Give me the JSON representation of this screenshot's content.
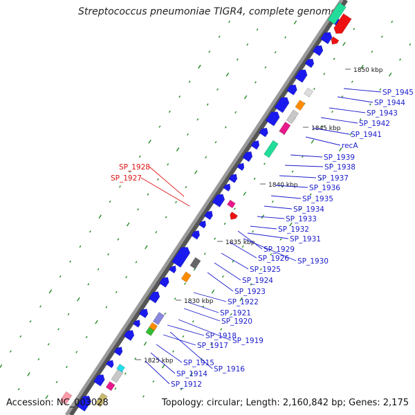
{
  "title": "Streptococcus pneumoniae TIGR4, complete genome",
  "accession": "Accession: NC_003028",
  "topology": "Topology: circular; Length: 2,160,842 bp; Genes: 2,175",
  "kbp_markers": [
    "1850 kbp",
    "1845 kbp",
    "1840 kbp",
    "1835 kbp",
    "1830 kbp",
    "1825 kbp"
  ],
  "genes_right": [
    "SP_1945",
    "SP_1944",
    "SP_1943",
    "SP_1942",
    "SP_1941",
    "recA",
    "SP_1939",
    "SP_1938",
    "SP_1937",
    "SP_1936",
    "SP_1935",
    "SP_1934",
    "SP_1933",
    "SP_1932",
    "SP_1931",
    "SP_1930",
    "SP_1929",
    "SP_1926",
    "SP_1925",
    "SP_1924",
    "SP_1923",
    "SP_1922",
    "SP_1921",
    "SP_1920",
    "SP_1919",
    "SP_1918",
    "SP_1917",
    "SP_1916",
    "SP_1915",
    "SP_1914",
    "SP_1912"
  ],
  "genes_left": [
    "SP_1928",
    "SP_1927"
  ],
  "colors": {
    "backbone": "#9a9a9a",
    "forward_gene": "#1a1aee",
    "reverse_gene": "#ee1111",
    "label_blue": "#1a1acc",
    "label_red": "#dd1111",
    "tick": "#228822",
    "magenta": "#e8198c",
    "orange": "#ff8c00",
    "gray": "#c8c8c8",
    "dark_gray": "#666666",
    "teal": "#22dd99",
    "lavender": "#8888dd",
    "olive": "#c8b870",
    "cyan": "#22ddee",
    "green": "#33bb33",
    "pink": "#ff9aaa"
  }
}
